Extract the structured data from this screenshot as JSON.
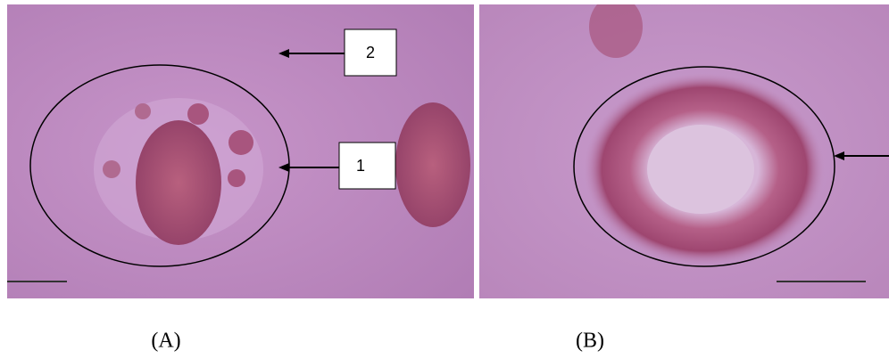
{
  "panels": [
    {
      "label": "(A)",
      "callouts": [
        "1",
        "2"
      ]
    },
    {
      "label": "(B)"
    }
  ]
}
